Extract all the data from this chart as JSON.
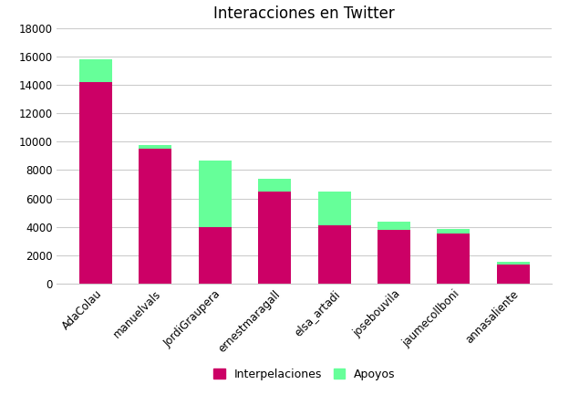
{
  "categories": [
    "AdaColau",
    "manuelvals",
    "JordiGraupera",
    "ernestmaragall",
    "elsa_artadi",
    "josebouvila",
    "jaumecollboni",
    "annasaliente"
  ],
  "interpelaciones": [
    14200,
    9500,
    4000,
    6500,
    4100,
    3800,
    3500,
    1350
  ],
  "apoyos": [
    1600,
    300,
    4700,
    900,
    2400,
    550,
    350,
    150
  ],
  "color_interp": "#CC0066",
  "color_apoyos": "#66FF99",
  "title": "Interacciones en Twitter",
  "legend_interp": "Interpelaciones",
  "legend_apoyos": "Apoyos",
  "ylim": [
    0,
    18000
  ],
  "yticks": [
    0,
    2000,
    4000,
    6000,
    8000,
    10000,
    12000,
    14000,
    16000,
    18000
  ],
  "bg_color": "#FFFFFF",
  "grid_color": "#CCCCCC",
  "bar_width": 0.55
}
